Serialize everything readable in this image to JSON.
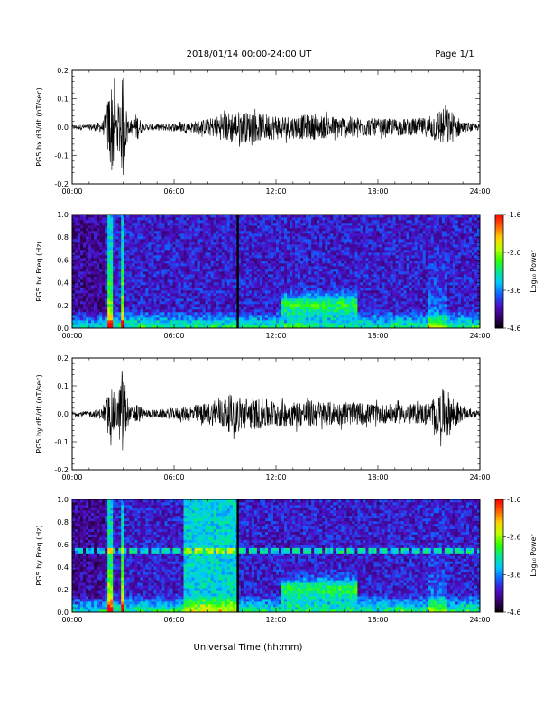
{
  "header": {
    "title": "2018/01/14  00:00-24:00 UT",
    "page": "Page 1/1"
  },
  "xaxis": {
    "title": "Universal Time (hh:mm)",
    "ticks": [
      "00:00",
      "06:00",
      "12:00",
      "18:00",
      "24:00"
    ],
    "range_hours": [
      0,
      24
    ]
  },
  "colors": {
    "trace": "#000000",
    "colormap": [
      "#000000",
      "#3a006a",
      "#4a10c8",
      "#1060ff",
      "#00c8ff",
      "#00e890",
      "#30ff00",
      "#c0ff00",
      "#ffd000",
      "#ff6000",
      "#ff0000"
    ]
  },
  "chart_data": [
    {
      "type": "line",
      "ylabel": "PG5 bx dB/dt (nT/sec)",
      "ylim": [
        -0.2,
        0.2
      ],
      "yticks": [
        "-0.2",
        "-0.1",
        "0.0",
        "0.1",
        "0.2"
      ],
      "envelope": {
        "x": [
          0.0,
          1.0,
          1.8,
          2.0,
          2.2,
          2.4,
          2.6,
          2.8,
          3.0,
          3.2,
          3.4,
          3.8,
          4.2,
          5.0,
          6.0,
          7.0,
          8.0,
          8.5,
          9.0,
          9.5,
          10.0,
          11.0,
          12.0,
          13.0,
          14.0,
          15.0,
          16.0,
          17.0,
          18.0,
          19.0,
          20.0,
          21.0,
          21.5,
          22.0,
          22.5,
          23.0,
          24.0
        ],
        "amp": [
          0.008,
          0.01,
          0.02,
          0.06,
          0.14,
          0.18,
          0.05,
          0.12,
          0.19,
          0.06,
          0.02,
          0.05,
          0.01,
          0.012,
          0.015,
          0.02,
          0.03,
          0.04,
          0.05,
          0.06,
          0.055,
          0.05,
          0.045,
          0.04,
          0.045,
          0.04,
          0.04,
          0.035,
          0.03,
          0.03,
          0.03,
          0.035,
          0.06,
          0.07,
          0.05,
          0.02,
          0.01
        ]
      }
    },
    {
      "type": "heatmap",
      "ylabel": "PG5 bx Freq (Hz)",
      "ylim": [
        0,
        1.0
      ],
      "yticks": [
        "0.0",
        "0.2",
        "0.4",
        "0.6",
        "0.8",
        "1.0"
      ],
      "colorbar": {
        "label": "Log₁₀ Power",
        "range": [
          -4.6,
          -1.6
        ],
        "ticks": [
          "-1.6",
          "-2.6",
          "-3.6",
          "-4.6"
        ]
      },
      "gap_hour": 9.75
    },
    {
      "type": "line",
      "ylabel": "PG5 by dB/dt (nT/sec)",
      "ylim": [
        -0.2,
        0.2
      ],
      "yticks": [
        "-0.2",
        "-0.1",
        "0.0",
        "0.1",
        "0.2"
      ],
      "envelope": {
        "x": [
          0.0,
          1.0,
          1.8,
          2.0,
          2.2,
          2.4,
          2.6,
          2.8,
          3.0,
          3.2,
          3.4,
          3.8,
          4.2,
          5.0,
          6.0,
          7.0,
          8.0,
          8.5,
          9.0,
          9.5,
          10.0,
          11.0,
          12.0,
          13.0,
          14.0,
          15.0,
          16.0,
          17.0,
          18.0,
          19.0,
          20.0,
          21.0,
          21.5,
          22.0,
          22.5,
          23.0,
          24.0
        ],
        "amp": [
          0.008,
          0.01,
          0.02,
          0.05,
          0.08,
          0.09,
          0.05,
          0.1,
          0.2,
          0.06,
          0.02,
          0.04,
          0.015,
          0.015,
          0.02,
          0.03,
          0.04,
          0.05,
          0.06,
          0.07,
          0.06,
          0.055,
          0.05,
          0.045,
          0.05,
          0.045,
          0.04,
          0.04,
          0.035,
          0.035,
          0.035,
          0.04,
          0.08,
          0.09,
          0.06,
          0.02,
          0.01
        ]
      }
    },
    {
      "type": "heatmap",
      "ylabel": "PG5 by Freq (Hz)",
      "ylim": [
        0,
        1.0
      ],
      "yticks": [
        "0.0",
        "0.2",
        "0.4",
        "0.6",
        "0.8",
        "1.0"
      ],
      "colorbar": {
        "label": "Log₁₀ Power",
        "range": [
          -4.6,
          -1.6
        ],
        "ticks": [
          "-1.6",
          "-2.6",
          "-3.6",
          "-4.6"
        ]
      },
      "gap_hour": 9.75,
      "spectral_line_hz": 0.55
    }
  ]
}
